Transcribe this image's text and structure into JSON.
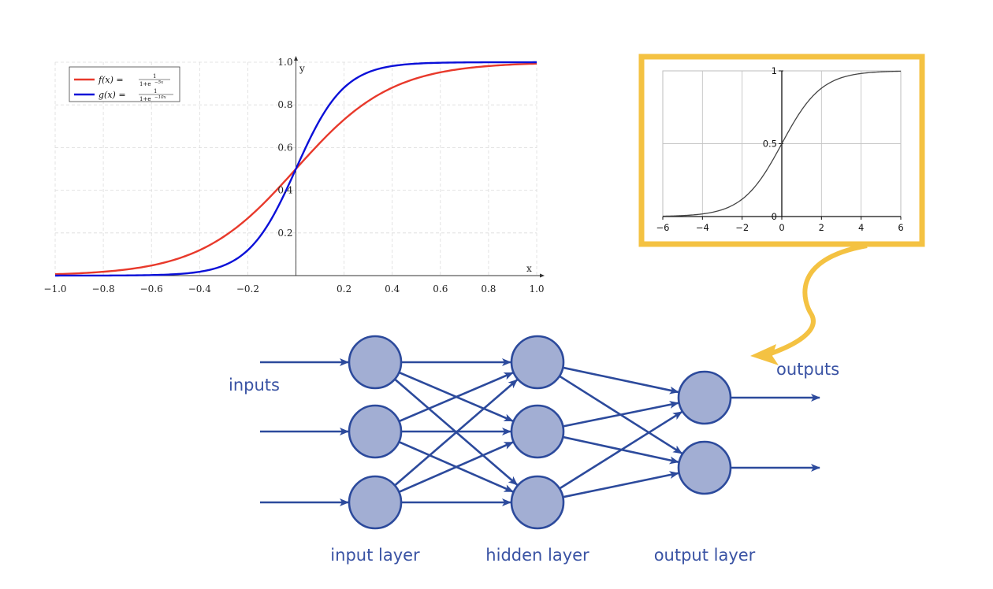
{
  "chart_data": [
    {
      "type": "line",
      "title": "",
      "xlabel": "x",
      "ylabel": "y",
      "xlim": [
        -1.0,
        1.0
      ],
      "ylim": [
        0,
        1.0
      ],
      "grid": true,
      "legend_position": "top-left",
      "x_ticks": [
        "−1.0",
        "−0.8",
        "−0.6",
        "−0.4",
        "−0.2",
        "0.2",
        "0.4",
        "0.6",
        "0.8",
        "1.0"
      ],
      "y_ticks": [
        "0.2",
        "0.4",
        "0.6",
        "0.8",
        "1.0"
      ],
      "series": [
        {
          "name": "f(x) = 1/(1+e^{−5x})",
          "color": "#e8392b",
          "x": [
            -1.0,
            -0.8,
            -0.6,
            -0.4,
            -0.2,
            0.0,
            0.2,
            0.4,
            0.6,
            0.8,
            1.0
          ],
          "y": [
            0.007,
            0.018,
            0.047,
            0.119,
            0.269,
            0.5,
            0.731,
            0.881,
            0.953,
            0.982,
            0.993
          ]
        },
        {
          "name": "g(x) = 1/(1+e^{−10x})",
          "color": "#0b10d8",
          "x": [
            -1.0,
            -0.8,
            -0.6,
            -0.4,
            -0.2,
            0.0,
            0.2,
            0.4,
            0.6,
            0.8,
            1.0
          ],
          "y": [
            0.0,
            0.0,
            0.002,
            0.018,
            0.119,
            0.5,
            0.881,
            0.982,
            0.998,
            1.0,
            1.0
          ]
        }
      ]
    },
    {
      "type": "line",
      "title": "",
      "xlim": [
        -6,
        6
      ],
      "ylim": [
        0,
        1
      ],
      "grid": true,
      "x_ticks": [
        "−6",
        "−4",
        "−2",
        "0",
        "2",
        "4",
        "6"
      ],
      "y_ticks": [
        "0",
        "0.5",
        "1"
      ],
      "series": [
        {
          "color": "#444444",
          "x": [
            -6,
            -5,
            -4,
            -3,
            -2,
            -1,
            0,
            1,
            2,
            3,
            4,
            5,
            6
          ],
          "y": [
            0.002,
            0.007,
            0.018,
            0.047,
            0.119,
            0.269,
            0.5,
            0.731,
            0.881,
            0.953,
            0.982,
            0.993,
            0.998
          ]
        }
      ]
    }
  ],
  "legend": {
    "f_label": "f(x) =",
    "f_num": "1",
    "f_den": "1+e",
    "f_exp": "−5x",
    "g_label": "g(x) =",
    "g_num": "1",
    "g_den": "1+e",
    "g_exp": "−10x"
  },
  "network": {
    "inputs_label": "inputs",
    "outputs_label": "outputs",
    "input_layer_label": "input layer",
    "hidden_layer_label": "hidden layer",
    "output_layer_label": "output layer",
    "layers": [
      3,
      3,
      2
    ],
    "colors": {
      "node_fill": "#a2aed3",
      "edge": "#2c4a9c",
      "text": "#3a53a4",
      "highlight": "#f4c242"
    }
  }
}
